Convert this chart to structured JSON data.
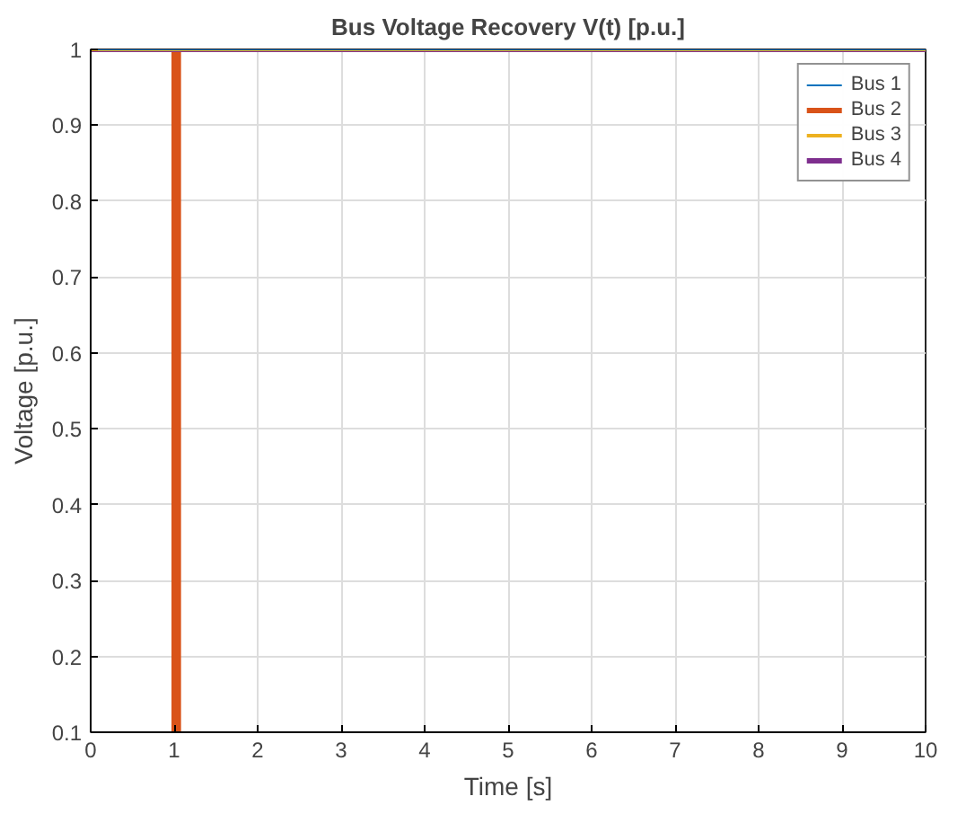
{
  "chart_data": {
    "type": "line",
    "title": "Bus Voltage Recovery V(t) [p.u.]",
    "xlabel": "Time [s]",
    "ylabel": "Voltage [p.u.]",
    "xlim": [
      0,
      10
    ],
    "ylim": [
      0.1,
      1
    ],
    "xticks": [
      0,
      1,
      2,
      3,
      4,
      5,
      6,
      7,
      8,
      9,
      10
    ],
    "yticks": [
      0.1,
      0.2,
      0.3,
      0.4,
      0.5,
      0.6,
      0.7,
      0.8,
      0.9,
      1
    ],
    "grid": true,
    "legend": "top right",
    "line_style": "solid",
    "series": [
      {
        "name": "Bus 1",
        "color": "#0072bd",
        "x": [
          0,
          10
        ],
        "values": [
          1,
          1
        ]
      },
      {
        "name": "Bus 2",
        "color": "#d95319",
        "x": [
          0,
          1.0,
          1.0,
          1.05,
          1.05,
          10
        ],
        "values": [
          1,
          1,
          0.1,
          0.1,
          1,
          1
        ]
      },
      {
        "name": "Bus 3",
        "color": "#edb120",
        "x": [
          0,
          10
        ],
        "values": [
          1,
          1
        ]
      },
      {
        "name": "Bus 4",
        "color": "#7e2f8e",
        "x": [
          0,
          10
        ],
        "values": [
          1,
          1
        ]
      }
    ]
  }
}
